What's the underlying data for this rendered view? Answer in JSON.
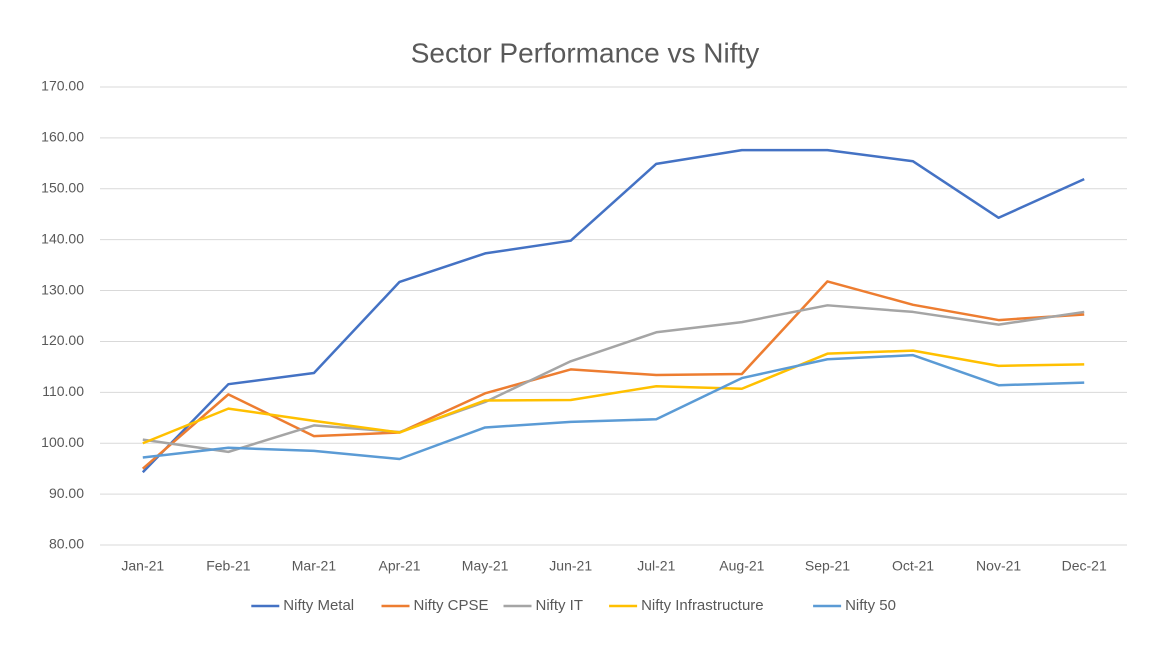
{
  "chart_data": {
    "type": "line",
    "title": "Sector Performance vs Nifty",
    "categories": [
      "Jan-21",
      "Feb-21",
      "Mar-21",
      "Apr-21",
      "May-21",
      "Jun-21",
      "Jul-21",
      "Aug-21",
      "Sep-21",
      "Oct-21",
      "Nov-21",
      "Dec-21"
    ],
    "series": [
      {
        "name": "Nifty Metal",
        "color": "#4472c4",
        "values": [
          94.3,
          111.6,
          113.8,
          131.7,
          137.3,
          139.8,
          154.9,
          157.6,
          157.6,
          155.4,
          144.3,
          151.9
        ]
      },
      {
        "name": "Nifty CPSE",
        "color": "#ed7d31",
        "values": [
          95.0,
          109.6,
          101.4,
          102.1,
          109.8,
          114.5,
          113.4,
          113.6,
          131.8,
          127.2,
          124.2,
          125.3
        ]
      },
      {
        "name": "Nifty IT",
        "color": "#a5a5a5",
        "values": [
          100.7,
          98.3,
          103.5,
          102.2,
          108.1,
          116.1,
          121.8,
          123.8,
          127.1,
          125.8,
          123.3,
          125.8
        ]
      },
      {
        "name": "Nifty Infrastructure",
        "color": "#ffc000",
        "values": [
          100.0,
          106.8,
          104.4,
          102.1,
          108.4,
          108.5,
          111.2,
          110.7,
          117.6,
          118.2,
          115.2,
          115.5
        ]
      },
      {
        "name": "Nifty 50",
        "color": "#5b9bd5",
        "values": [
          97.2,
          99.1,
          98.5,
          96.9,
          103.1,
          104.2,
          104.7,
          112.8,
          116.5,
          117.3,
          111.4,
          111.9
        ]
      }
    ],
    "ylim": [
      80,
      170
    ],
    "yticks": [
      {
        "value": 80,
        "label": "80.00"
      },
      {
        "value": 90,
        "label": "90.00"
      },
      {
        "value": 100,
        "label": "100.00"
      },
      {
        "value": 110,
        "label": "110.00"
      },
      {
        "value": 120,
        "label": "120.00"
      },
      {
        "value": 130,
        "label": "130.00"
      },
      {
        "value": 140,
        "label": "140.00"
      },
      {
        "value": 150,
        "label": "150.00"
      },
      {
        "value": 160,
        "label": "160.00"
      },
      {
        "value": 170,
        "label": "170.00"
      }
    ],
    "grid": true
  }
}
